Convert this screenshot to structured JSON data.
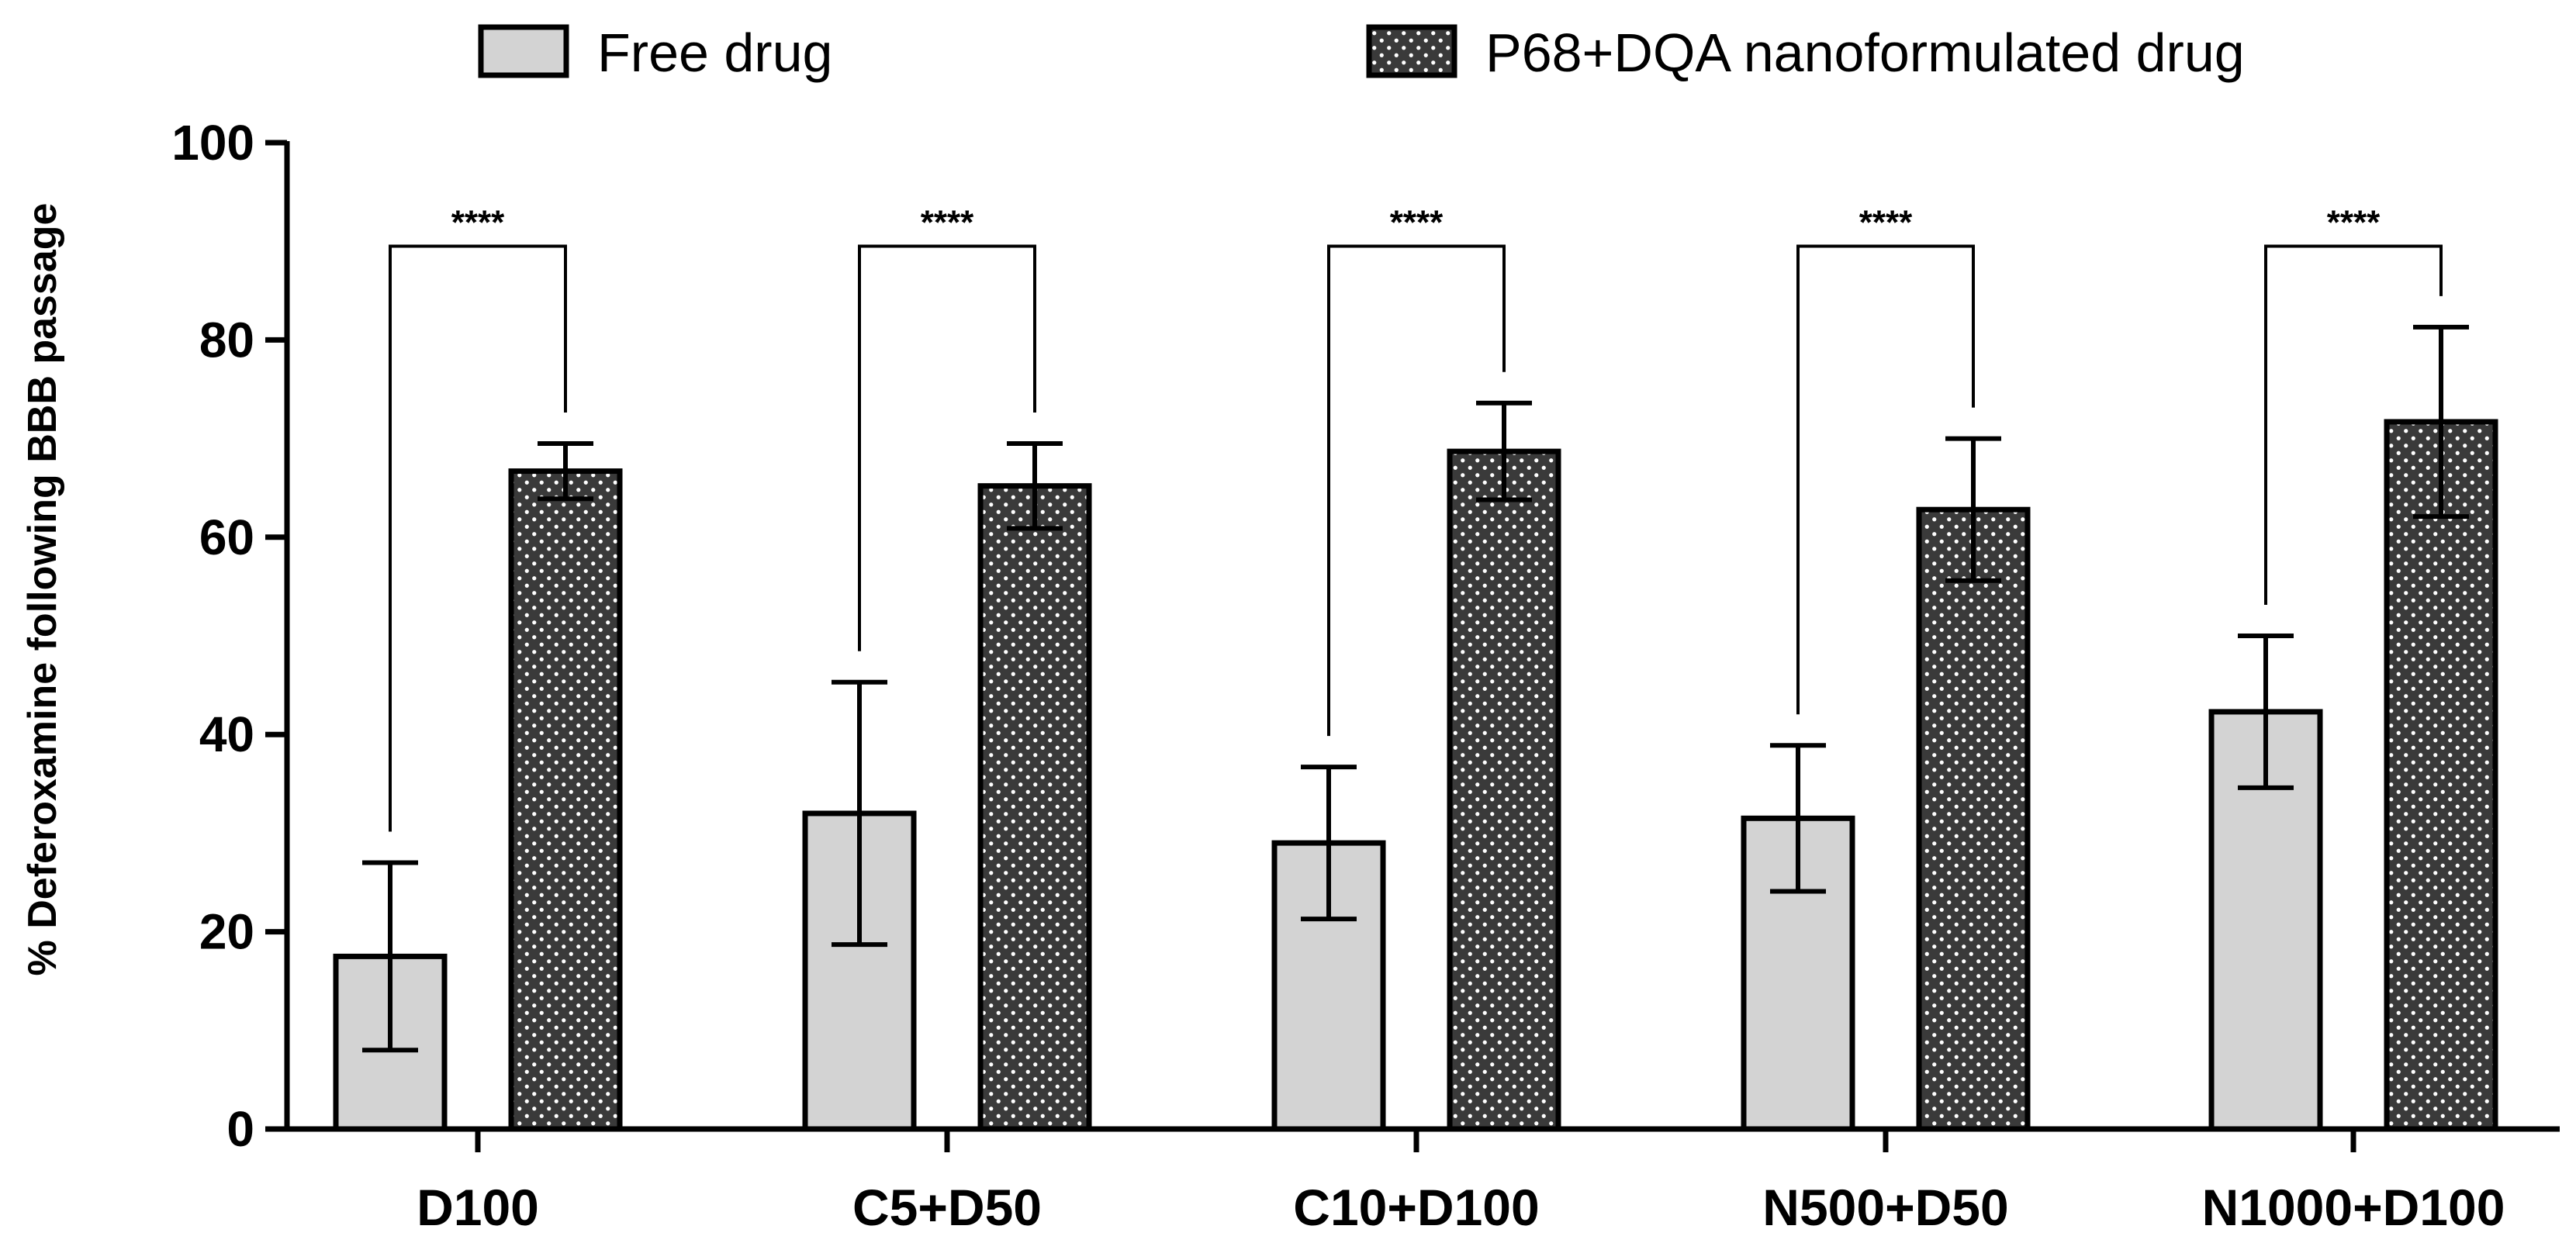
{
  "chart_data": {
    "type": "bar",
    "title": "",
    "xlabel": "",
    "ylabel": "% Deferoxamine following BBB passage",
    "ylim": [
      0,
      100
    ],
    "yticks": [
      0,
      20,
      40,
      60,
      80,
      100
    ],
    "yticklabels": [
      "0",
      "20",
      "40",
      "60",
      "80",
      "100"
    ],
    "categories": [
      "D100",
      "C5+D50",
      "C10+D100",
      "N500+D50",
      "N1000+D100"
    ],
    "series": [
      {
        "name": "Free drug",
        "pattern": "plain",
        "color": "#d3d3d3",
        "values": [
          17.5,
          32.0,
          29.0,
          31.5,
          42.3
        ],
        "errors": [
          9.5,
          13.3,
          7.7,
          7.4,
          7.7
        ]
      },
      {
        "name": "P68+DQA nanoformulated drug",
        "pattern": "dotted",
        "color": "#3a3a3a",
        "values": [
          66.7,
          65.2,
          68.7,
          62.8,
          71.7
        ],
        "errors": [
          2.8,
          4.3,
          4.9,
          7.2,
          9.6
        ]
      }
    ],
    "significance": [
      {
        "label": "****",
        "bracket_top": 89.5
      },
      {
        "label": "****",
        "bracket_top": 89.5
      },
      {
        "label": "****",
        "bracket_top": 89.5
      },
      {
        "label": "****",
        "bracket_top": 89.5
      },
      {
        "label": "****",
        "bracket_top": 89.5
      }
    ],
    "legend_position": "top",
    "grid": false
  }
}
